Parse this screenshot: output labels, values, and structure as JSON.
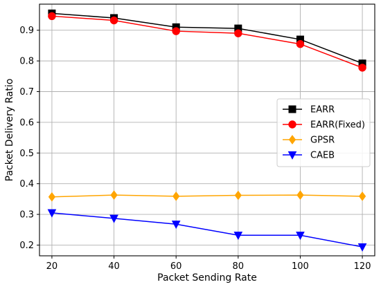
{
  "chart_data": {
    "type": "line",
    "title": "",
    "xlabel": "Packet Sending Rate",
    "ylabel": "Packet Delivery Ratio",
    "x": [
      20,
      40,
      60,
      80,
      100,
      120
    ],
    "xticks": [
      "20",
      "40",
      "60",
      "80",
      "100",
      "120"
    ],
    "yticks": [
      "0.2",
      "0.3",
      "0.4",
      "0.5",
      "0.6",
      "0.7",
      "0.8",
      "0.9"
    ],
    "xlim": [
      16,
      124
    ],
    "ylim": [
      0.165,
      0.985
    ],
    "grid": true,
    "legend_position": "center-right",
    "series": [
      {
        "name": "EARR",
        "color": "#000000",
        "marker": "square",
        "values": [
          0.955,
          0.94,
          0.91,
          0.906,
          0.87,
          0.792
        ]
      },
      {
        "name": "EARR(Fixed)",
        "color": "#ff0000",
        "marker": "circle",
        "values": [
          0.946,
          0.932,
          0.897,
          0.89,
          0.855,
          0.778
        ]
      },
      {
        "name": "GPSR",
        "color": "#ffa500",
        "marker": "diamond",
        "values": [
          0.357,
          0.363,
          0.359,
          0.362,
          0.363,
          0.359
        ]
      },
      {
        "name": "CAEB",
        "color": "#0000ff",
        "marker": "triangle-down",
        "values": [
          0.305,
          0.287,
          0.268,
          0.232,
          0.232,
          0.194
        ]
      }
    ]
  }
}
